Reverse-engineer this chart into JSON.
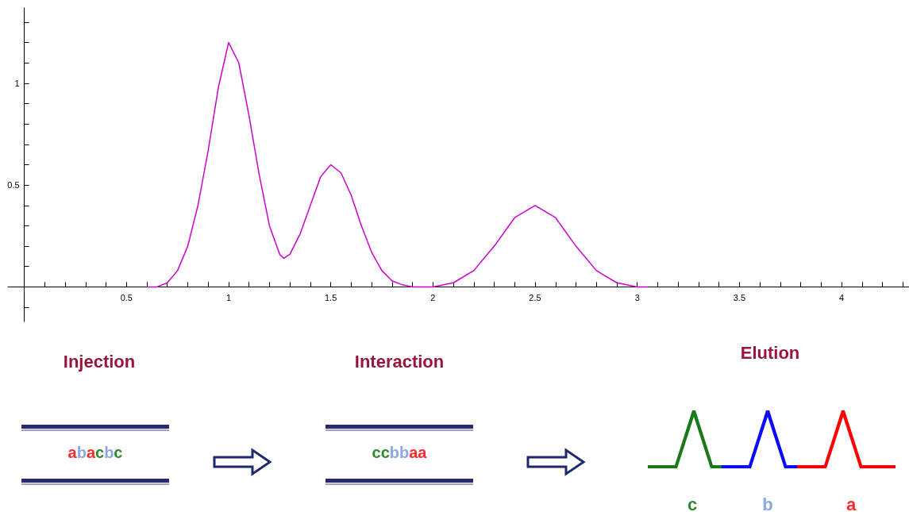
{
  "chart_data": {
    "type": "line",
    "color": "#cc00cc",
    "marker": "none",
    "line_style": "solid",
    "grid": false,
    "x": [
      0.6,
      0.65,
      0.7,
      0.75,
      0.8,
      0.85,
      0.9,
      0.95,
      1.0,
      1.05,
      1.1,
      1.15,
      1.2,
      1.25,
      1.27,
      1.3,
      1.35,
      1.4,
      1.45,
      1.5,
      1.55,
      1.6,
      1.65,
      1.7,
      1.75,
      1.8,
      1.85,
      1.9,
      2.0,
      2.1,
      2.2,
      2.3,
      2.4,
      2.5,
      2.6,
      2.7,
      2.8,
      2.9,
      3.0,
      3.05
    ],
    "values": [
      0,
      0,
      0.02,
      0.08,
      0.2,
      0.4,
      0.67,
      0.98,
      1.2,
      1.1,
      0.84,
      0.55,
      0.3,
      0.16,
      0.14,
      0.16,
      0.26,
      0.4,
      0.54,
      0.6,
      0.56,
      0.45,
      0.3,
      0.17,
      0.08,
      0.03,
      0.01,
      0,
      0,
      0.02,
      0.08,
      0.2,
      0.34,
      0.4,
      0.34,
      0.2,
      0.08,
      0.02,
      0,
      0
    ],
    "xlim": [
      -0.08,
      4.33
    ],
    "ylim": [
      -0.17,
      1.37
    ],
    "xticks": [
      {
        "value": 0.1,
        "label": null
      },
      {
        "value": 0.2,
        "label": null
      },
      {
        "value": 0.3,
        "label": null
      },
      {
        "value": 0.4,
        "label": null
      },
      0.5,
      {
        "value": 0.6,
        "label": null
      },
      {
        "value": 0.7,
        "label": null
      },
      {
        "value": 0.8,
        "label": null
      },
      {
        "value": 0.9,
        "label": null
      },
      1,
      {
        "value": 1.1,
        "label": null
      },
      {
        "value": 1.2,
        "label": null
      },
      {
        "value": 1.3,
        "label": null
      },
      {
        "value": 1.4,
        "label": null
      },
      1.5,
      {
        "value": 1.6,
        "label": null
      },
      {
        "value": 1.7,
        "label": null
      },
      {
        "value": 1.8,
        "label": null
      },
      {
        "value": 1.9,
        "label": null
      },
      2,
      {
        "value": 2.1,
        "label": null
      },
      {
        "value": 2.2,
        "label": null
      },
      {
        "value": 2.3,
        "label": null
      },
      {
        "value": 2.4,
        "label": null
      },
      2.5,
      {
        "value": 2.6,
        "label": null
      },
      {
        "value": 2.7,
        "label": null
      },
      {
        "value": 2.8,
        "label": null
      },
      {
        "value": 2.9,
        "label": null
      },
      3,
      {
        "value": 3.1,
        "label": null
      },
      {
        "value": 3.2,
        "label": null
      },
      {
        "value": 3.3,
        "label": null
      },
      {
        "value": 3.4,
        "label": null
      },
      3.5,
      {
        "value": 3.6,
        "label": null
      },
      {
        "value": 3.7,
        "label": null
      },
      {
        "value": 3.8,
        "label": null
      },
      {
        "value": 3.9,
        "label": null
      },
      4,
      {
        "value": 4.1,
        "label": null
      },
      {
        "value": 4.2,
        "label": null
      },
      {
        "value": 4.3,
        "label": null
      }
    ],
    "yticks": [
      {
        "value": -0.1,
        "label": null
      },
      {
        "value": 0.1,
        "label": null
      },
      {
        "value": 0.2,
        "label": null
      },
      {
        "value": 0.3,
        "label": null
      },
      {
        "value": 0.4,
        "label": null
      },
      0.5,
      {
        "value": 0.6,
        "label": null
      },
      {
        "value": 0.7,
        "label": null
      },
      {
        "value": 0.8,
        "label": null
      },
      {
        "value": 0.9,
        "label": null
      },
      1,
      {
        "value": 1.1,
        "label": null
      },
      {
        "value": 1.2,
        "label": null
      },
      {
        "value": 1.3,
        "label": null
      }
    ],
    "annotations": [
      "Injection",
      "abacbc",
      "Interaction",
      "ccbbaa",
      "Elution",
      "c",
      "b",
      "a"
    ]
  }
}
